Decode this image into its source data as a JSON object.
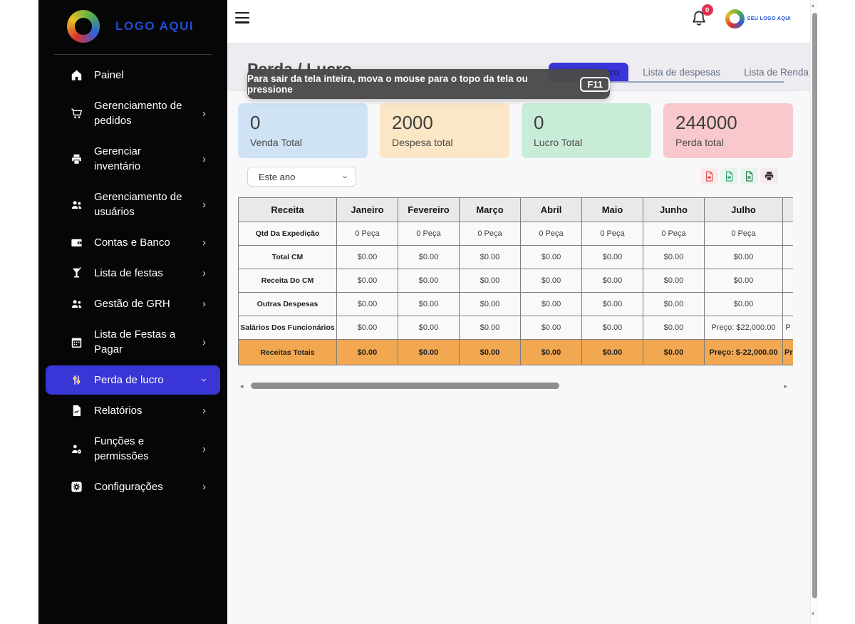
{
  "colors": {
    "accent": "#3a35d6",
    "sidebar_bg": "#060606",
    "highlight_row": "#f2a851",
    "badge": "#e3314d"
  },
  "sidebar": {
    "logo_text": "LOGO AQUI",
    "items": [
      {
        "name": "painel",
        "label": "Painel",
        "icon": "home",
        "has_submenu": false,
        "active": false
      },
      {
        "name": "gerenciamento-de-pedidos",
        "label": "Gerenciamento de pedidos",
        "icon": "cart",
        "has_submenu": true,
        "active": false
      },
      {
        "name": "gerenciar-inventario",
        "label": "Gerenciar inventário",
        "icon": "inventory",
        "has_submenu": true,
        "active": false
      },
      {
        "name": "gerenciamento-de-usuarios",
        "label": "Gerenciamento de usuários",
        "icon": "users",
        "has_submenu": true,
        "active": false
      },
      {
        "name": "contas-e-banco",
        "label": "Contas e Banco",
        "icon": "wallet",
        "has_submenu": true,
        "active": false
      },
      {
        "name": "lista-de-festas",
        "label": "Lista de festas",
        "icon": "party",
        "has_submenu": true,
        "active": false
      },
      {
        "name": "gestao-de-grh",
        "label": "Gestão de GRH",
        "icon": "people",
        "has_submenu": true,
        "active": false
      },
      {
        "name": "lista-de-festas-a-pagar",
        "label": "Lista de Festas a Pagar",
        "icon": "calendar",
        "has_submenu": true,
        "active": false
      },
      {
        "name": "perda-de-lucro",
        "label": "Perda de lucro",
        "icon": "profit-loss",
        "has_submenu": true,
        "active": true,
        "expanded": true
      },
      {
        "name": "relatorios",
        "label": "Relatórios",
        "icon": "report",
        "has_submenu": true,
        "active": false
      },
      {
        "name": "funcoes-e-permissoes",
        "label": "Funções e permissões",
        "icon": "roles",
        "has_submenu": true,
        "active": false
      },
      {
        "name": "configuracoes",
        "label": "Configurações",
        "icon": "settings",
        "has_submenu": true,
        "active": false
      }
    ]
  },
  "header": {
    "notification_count": "0",
    "profile_logo_text": "SEU LOGO AQUI"
  },
  "fullscreen_tooltip": {
    "text": "Para sair da tela inteira, mova o mouse para o topo da tela ou pressione",
    "key": "F11"
  },
  "page": {
    "title": "Perda / Lucro",
    "tabs": [
      {
        "name": "perda-lucro",
        "label": "Perda / Lucro",
        "active": true
      },
      {
        "name": "lista-de-despesas",
        "label": "Lista de despesas",
        "active": false
      },
      {
        "name": "lista-de-renda",
        "label": "Lista de Renda",
        "active": false
      }
    ],
    "stats": [
      {
        "name": "venda-total",
        "value": "0",
        "label": "Venda Total",
        "bg": "#cfe3f4"
      },
      {
        "name": "despesa-total",
        "value": "2000",
        "label": "Despesa total",
        "bg": "#fbe6c5"
      },
      {
        "name": "lucro-total",
        "value": "0",
        "label": "Lucro Total",
        "bg": "#c9ecd9"
      },
      {
        "name": "perda-total",
        "value": "244000",
        "label": "Perda total",
        "bg": "#f8c8cd"
      }
    ],
    "filter": {
      "selected": "Este ano"
    },
    "export_buttons": [
      {
        "name": "export-pdf",
        "icon": "file-pdf",
        "color": "#d9534f",
        "bg": "#fbeaea"
      },
      {
        "name": "export-csv",
        "icon": "file-csv",
        "color": "#39a878",
        "bg": "#e7f5ee"
      },
      {
        "name": "export-excel",
        "icon": "file-excel",
        "color": "#2f7d52",
        "bg": "#e7f5ee"
      },
      {
        "name": "print",
        "icon": "printer",
        "color": "#2f2f2f",
        "bg": "#f6eaee"
      }
    ]
  },
  "table": {
    "columns": [
      "Receita",
      "Janeiro",
      "Fevereiro",
      "Março",
      "Abril",
      "Maio",
      "Junho",
      "Julho"
    ],
    "rows": [
      {
        "name": "qtd-da-expedicao",
        "label": "Qtd Da Expedição",
        "values": [
          "0 Peça",
          "0 Peça",
          "0 Peça",
          "0 Peça",
          "0 Peça",
          "0 Peça",
          "0 Peça"
        ],
        "partial": "",
        "highlight": false
      },
      {
        "name": "total-cm",
        "label": "Total CM",
        "values": [
          "$0.00",
          "$0.00",
          "$0.00",
          "$0.00",
          "$0.00",
          "$0.00",
          "$0.00"
        ],
        "partial": "",
        "highlight": false
      },
      {
        "name": "receita-do-cm",
        "label": "Receita Do CM",
        "values": [
          "$0.00",
          "$0.00",
          "$0.00",
          "$0.00",
          "$0.00",
          "$0.00",
          "$0.00"
        ],
        "partial": "",
        "highlight": false
      },
      {
        "name": "outras-despesas",
        "label": "Outras Despesas",
        "values": [
          "$0.00",
          "$0.00",
          "$0.00",
          "$0.00",
          "$0.00",
          "$0.00",
          "$0.00"
        ],
        "partial": "",
        "highlight": false
      },
      {
        "name": "salarios-dos-funcionarios",
        "label": "Salários Dos Funcionários",
        "values": [
          "$0.00",
          "$0.00",
          "$0.00",
          "$0.00",
          "$0.00",
          "$0.00",
          "Preço: $22,000.00"
        ],
        "partial": "P",
        "highlight": false
      },
      {
        "name": "receitas-totais",
        "label": "Receitas Totais",
        "values": [
          "$0.00",
          "$0.00",
          "$0.00",
          "$0.00",
          "$0.00",
          "$0.00",
          "Preço: $-22,000.00"
        ],
        "partial": "Pr",
        "highlight": true
      }
    ]
  },
  "scrollbars": {
    "horizontal": {
      "left_arrow": "◂",
      "right_arrow": "▸"
    },
    "vertical": {
      "up_arrow": "▲",
      "down_arrow": "▼"
    }
  }
}
